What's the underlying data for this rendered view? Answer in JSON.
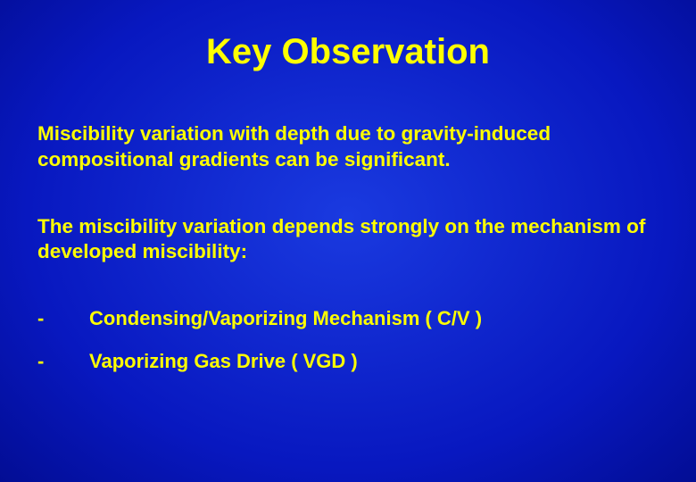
{
  "slide": {
    "background": {
      "gradient_type": "radial",
      "center_color": "#1a3ae0",
      "mid_color": "#0818c0",
      "outer_color": "#000880",
      "edge_color": "#000050"
    },
    "text_color": "#ffff00",
    "title": {
      "text": "Key Observation",
      "fontsize": 40,
      "fontweight": "bold"
    },
    "body_fontsize": 22.5,
    "body_fontweight": "bold",
    "para1": "Miscibility variation with depth due to gravity-induced compositional gradients can be significant.",
    "para2": "The miscibility variation depends strongly on the mechanism of developed miscibility:",
    "bullets": [
      {
        "dash": "-",
        "text": "Condensing/Vaporizing Mechanism ( C/V )"
      },
      {
        "dash": "-",
        "text": "Vaporizing Gas Drive ( VGD )"
      }
    ]
  }
}
